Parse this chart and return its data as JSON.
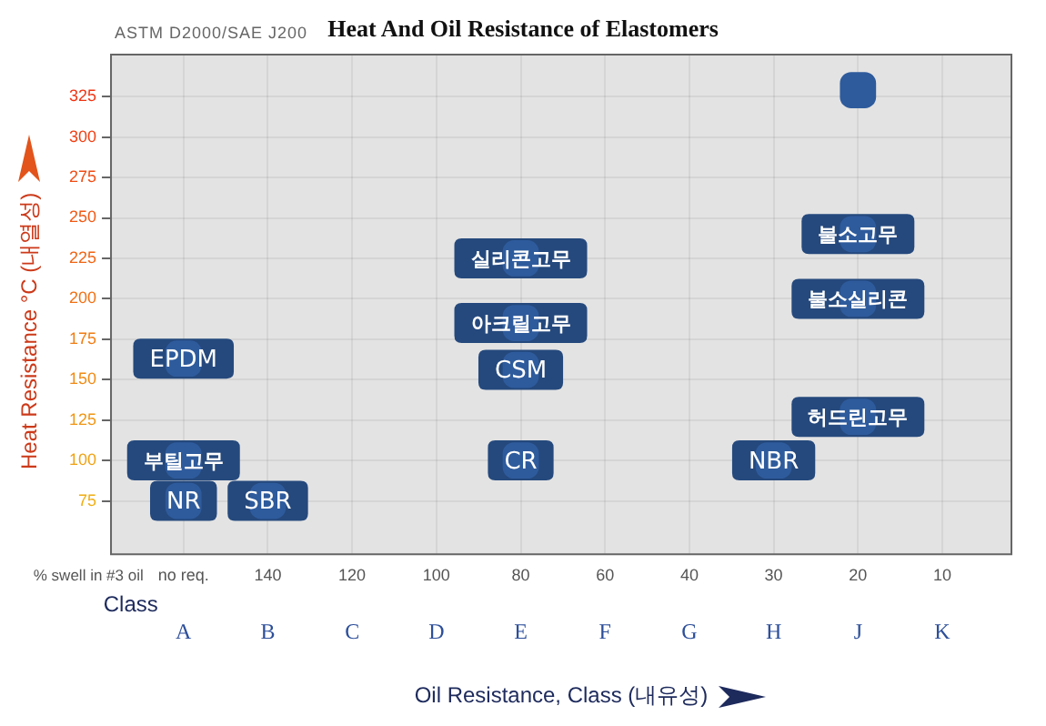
{
  "chart_data": {
    "type": "scatter",
    "title": "Heat And Oil Resistance of Elastomers",
    "subtitle": "ASTM D2000/SAE J200",
    "xlabel": "Oil Resistance, Class (내유성)",
    "ylabel": "Heat Resistance °C (내열성)",
    "annotations": [
      "% swell in #3 oil",
      "Class",
      "no req.",
      "140",
      "120",
      "100",
      "80",
      "60",
      "40",
      "30",
      "20",
      "10"
    ],
    "categories": [
      "A",
      "B",
      "C",
      "D",
      "E",
      "F",
      "G",
      "H",
      "J",
      "K"
    ],
    "ylim": [
      42,
      351
    ],
    "yticks": [
      75,
      100,
      125,
      150,
      175,
      200,
      225,
      250,
      275,
      300,
      325
    ],
    "grid": true,
    "legend": false,
    "marker": "square",
    "series": [
      {
        "color": "#2e5b9c",
        "x": [
          "J"
        ],
        "values": [
          329
        ]
      },
      {
        "name": "불소고무",
        "color": "#2e5b9c",
        "x": [
          "J"
        ],
        "values": [
          240
        ]
      },
      {
        "name": "불소실리콘",
        "color": "#2e5b9c",
        "x": [
          "J"
        ],
        "values": [
          200
        ]
      },
      {
        "name": "실리콘고무",
        "color": "#2e5b9c",
        "x": [
          "E"
        ],
        "values": [
          225
        ]
      },
      {
        "name": "아크릴고무",
        "color": "#2e5b9c",
        "x": [
          "E"
        ],
        "values": [
          185
        ]
      },
      {
        "name": "EPDM",
        "color": "#2e5b9c",
        "x": [
          "A"
        ],
        "values": [
          163
        ]
      },
      {
        "name": "CSM",
        "color": "#2e5b9c",
        "x": [
          "E"
        ],
        "values": [
          156
        ]
      },
      {
        "name": "허드린고무",
        "color": "#2e5b9c",
        "x": [
          "J"
        ],
        "values": [
          127
        ]
      },
      {
        "name": "부틸고무",
        "color": "#2e5b9c",
        "x": [
          "A"
        ],
        "values": [
          100
        ]
      },
      {
        "name": "CR",
        "color": "#2e5b9c",
        "x": [
          "E"
        ],
        "values": [
          100
        ]
      },
      {
        "name": "NBR",
        "color": "#2e5b9c",
        "x": [
          "H"
        ],
        "values": [
          100
        ]
      },
      {
        "name": "NR",
        "color": "#2e5b9c",
        "x": [
          "A"
        ],
        "values": [
          75
        ]
      },
      {
        "name": "SBR",
        "color": "#2e5b9c",
        "x": [
          "B"
        ],
        "values": [
          75
        ]
      }
    ]
  }
}
